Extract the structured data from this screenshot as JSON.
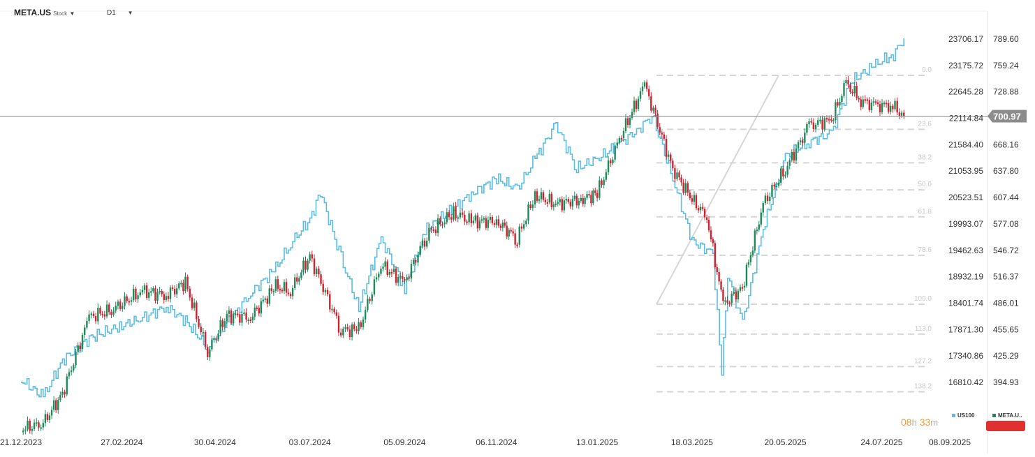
{
  "header": {
    "symbol": "META.US",
    "symbol_type": "Stock",
    "timeframe": "D1"
  },
  "timer": {
    "h_val": "08",
    "h_unit": "h",
    "m_val": "33",
    "m_unit": "m"
  },
  "legend": [
    {
      "name": "US100",
      "color": "#5bbde4"
    },
    {
      "name": "META.U..",
      "color": "#1e8a5a"
    }
  ],
  "colors": {
    "up": "#1e8a5a",
    "down": "#d0232f",
    "line": "#5bbde4",
    "price_tag": "#8c8c8c"
  },
  "chart_data": {
    "type": "line",
    "x_tick_labels": [
      "21.12.2023",
      "27.02.2024",
      "30.04.2024",
      "03.07.2024",
      "05.09.2024",
      "06.11.2024",
      "13.01.2025",
      "18.03.2025",
      "20.05.2025",
      "24.07.2025",
      "08.09.2025"
    ],
    "x_start": "2023-12-21",
    "x_end": "2025-09-08",
    "y_left_ticks": [
      23706.17,
      23175.72,
      22645.28,
      22114.84,
      21584.4,
      21053.95,
      20523.51,
      19993.07,
      19462.63,
      18932.19,
      18401.74,
      17871.3,
      17340.86,
      16810.42
    ],
    "y_left_tick_labels": [
      "23706.17",
      "23175.72",
      "22645.28",
      "22114.84",
      "21584.40",
      "21053.95",
      "20523.51",
      "19993.07",
      "19462.63",
      "18932.19",
      "18401.74",
      "17871.30",
      "17340.86",
      "16810.42"
    ],
    "y_right_ticks": [
      789.6,
      759.24,
      728.88,
      700.97,
      668.16,
      637.8,
      607.44,
      577.08,
      546.72,
      516.37,
      486.01,
      455.65,
      425.29,
      394.93
    ],
    "y_right_tick_labels": [
      "789.60",
      "759.24",
      "728.88",
      "",
      "668.16",
      "637.80",
      "607.44",
      "577.08",
      "546.72",
      "516.37",
      "486.01",
      "455.65",
      "425.29",
      "394.93"
    ],
    "y_right_range": [
      789.6,
      394.93
    ],
    "current_price": 700.97,
    "current_price_label": "700.97",
    "fib_swing": {
      "from": {
        "date": "2025-04-08",
        "value": 484.66
      },
      "to": {
        "date": "2025-06-30",
        "value": 747.9
      }
    },
    "fib_levels": [
      {
        "label": "0.0",
        "value": 747.9
      },
      {
        "label": "23.6",
        "value": 685.78
      },
      {
        "label": "38.2",
        "value": 647.34
      },
      {
        "label": "50.0",
        "value": 616.28
      },
      {
        "label": "61.8",
        "value": 585.22
      },
      {
        "label": "78.6",
        "value": 540.98
      },
      {
        "label": "100.0",
        "value": 484.66
      },
      {
        "label": "113.0",
        "value": 450.43
      },
      {
        "label": "127.2",
        "value": 413.06
      },
      {
        "label": "138.2",
        "value": 384.1
      }
    ],
    "series": [
      {
        "name": "US100",
        "style": "line",
        "points": [
          [
            "2023-12-21",
            16860
          ],
          [
            "2024-01-05",
            16520
          ],
          [
            "2024-01-18",
            17250
          ],
          [
            "2024-02-05",
            17700
          ],
          [
            "2024-02-27",
            17950
          ],
          [
            "2024-03-12",
            18100
          ],
          [
            "2024-03-28",
            18330
          ],
          [
            "2024-04-10",
            18050
          ],
          [
            "2024-04-25",
            17500
          ],
          [
            "2024-05-08",
            18000
          ],
          [
            "2024-05-24",
            18600
          ],
          [
            "2024-06-10",
            19100
          ],
          [
            "2024-06-20",
            19600
          ],
          [
            "2024-07-03",
            20080
          ],
          [
            "2024-07-10",
            20630
          ],
          [
            "2024-07-24",
            19300
          ],
          [
            "2024-08-05",
            18300
          ],
          [
            "2024-08-20",
            19700
          ],
          [
            "2024-09-05",
            18700
          ],
          [
            "2024-09-20",
            19900
          ],
          [
            "2024-10-08",
            20300
          ],
          [
            "2024-10-20",
            20600
          ],
          [
            "2024-11-06",
            20900
          ],
          [
            "2024-11-20",
            20700
          ],
          [
            "2024-12-02",
            21300
          ],
          [
            "2024-12-16",
            22000
          ],
          [
            "2024-12-30",
            21100
          ],
          [
            "2025-01-13",
            21300
          ],
          [
            "2025-01-28",
            21600
          ],
          [
            "2025-02-10",
            21900
          ],
          [
            "2025-02-19",
            22180
          ],
          [
            "2025-03-05",
            20900
          ],
          [
            "2025-03-18",
            19650
          ],
          [
            "2025-04-01",
            19400
          ],
          [
            "2025-04-07",
            16940
          ],
          [
            "2025-04-11",
            19000
          ],
          [
            "2025-04-21",
            18000
          ],
          [
            "2025-05-05",
            19900
          ],
          [
            "2025-05-20",
            21350
          ],
          [
            "2025-06-05",
            21650
          ],
          [
            "2025-06-20",
            21800
          ],
          [
            "2025-07-03",
            22850
          ],
          [
            "2025-07-20",
            23200
          ],
          [
            "2025-08-01",
            23400
          ],
          [
            "2025-08-08",
            23720
          ]
        ]
      },
      {
        "name": "META.US",
        "style": "candlestick",
        "points": [
          [
            "2023-12-21",
            341
          ],
          [
            "2024-01-05",
            348
          ],
          [
            "2024-01-18",
            382
          ],
          [
            "2024-02-05",
            470
          ],
          [
            "2024-02-20",
            478
          ],
          [
            "2024-03-12",
            500
          ],
          [
            "2024-03-28",
            495
          ],
          [
            "2024-04-10",
            510
          ],
          [
            "2024-04-25",
            430
          ],
          [
            "2024-05-08",
            472
          ],
          [
            "2024-05-24",
            470
          ],
          [
            "2024-06-10",
            505
          ],
          [
            "2024-06-20",
            500
          ],
          [
            "2024-07-03",
            540
          ],
          [
            "2024-07-24",
            455
          ],
          [
            "2024-08-05",
            455
          ],
          [
            "2024-08-20",
            530
          ],
          [
            "2024-09-05",
            510
          ],
          [
            "2024-09-20",
            565
          ],
          [
            "2024-10-08",
            590
          ],
          [
            "2024-10-20",
            580
          ],
          [
            "2024-11-06",
            580
          ],
          [
            "2024-11-20",
            560
          ],
          [
            "2024-12-02",
            610
          ],
          [
            "2024-12-16",
            600
          ],
          [
            "2025-01-02",
            605
          ],
          [
            "2025-01-13",
            612
          ],
          [
            "2025-01-28",
            675
          ],
          [
            "2025-02-14",
            737
          ],
          [
            "2025-03-05",
            640
          ],
          [
            "2025-03-18",
            605
          ],
          [
            "2025-03-28",
            585
          ],
          [
            "2025-04-08",
            484
          ],
          [
            "2025-04-21",
            504
          ],
          [
            "2025-05-05",
            600
          ],
          [
            "2025-05-20",
            640
          ],
          [
            "2025-06-05",
            690
          ],
          [
            "2025-06-20",
            697
          ],
          [
            "2025-06-30",
            738
          ],
          [
            "2025-07-10",
            720
          ],
          [
            "2025-07-20",
            712
          ],
          [
            "2025-07-30",
            715
          ],
          [
            "2025-08-08",
            700.97
          ]
        ]
      }
    ]
  }
}
